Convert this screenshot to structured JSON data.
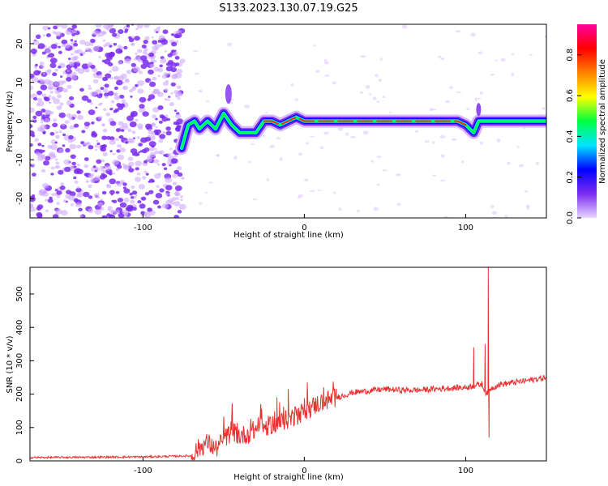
{
  "title": "S133.2023.130.07.19.G25",
  "chart_data": [
    {
      "type": "heatmap",
      "xlabel": "Height of straight line (km)",
      "ylabel": "Frequency (Hz)",
      "xlim": [
        -170,
        150
      ],
      "ylim": [
        -25,
        25
      ],
      "xticks": [
        -100,
        0,
        100
      ],
      "yticks": [
        -20,
        -10,
        0,
        10,
        20
      ],
      "colorbar": {
        "label": "Normalized spectral amplitude",
        "range": [
          0.0,
          0.95
        ],
        "ticks": [
          0.0,
          0.2,
          0.4,
          0.6,
          0.8
        ],
        "colormap": [
          "#e8d5ff",
          "#7b2cf0",
          "#0000ff",
          "#00e5ff",
          "#00ff40",
          "#ffff00",
          "#ff8000",
          "#ff0000",
          "#ff00a0"
        ]
      },
      "ridge": {
        "x": [
          -76,
          -72,
          -68,
          -65,
          -60,
          -55,
          -50,
          -45,
          -40,
          -35,
          -30,
          -25,
          -20,
          -15,
          -10,
          -5,
          0,
          10,
          20,
          40,
          60,
          80,
          95,
          100,
          105,
          108,
          110,
          120,
          130,
          140,
          150
        ],
        "y": [
          -7,
          -1,
          0,
          -2,
          0,
          -2,
          2,
          -1,
          -3,
          -3,
          -3,
          0,
          0,
          -1,
          0,
          1,
          0,
          0,
          0,
          0,
          0,
          0,
          0,
          -1,
          -3,
          0,
          0,
          0,
          0,
          0,
          0
        ]
      },
      "noise_region": [
        -170,
        -75
      ]
    },
    {
      "type": "line",
      "xlabel": "Height of straight line (km)",
      "ylabel": "SNR (10 * v/v)",
      "xlim": [
        -170,
        150
      ],
      "ylim": [
        0,
        580
      ],
      "xticks": [
        -100,
        0,
        100
      ],
      "yticks": [
        0,
        100,
        200,
        300,
        400,
        500
      ],
      "color": "#e8312f",
      "trend": {
        "x": [
          -170,
          -100,
          -70,
          -65,
          -60,
          -55,
          -50,
          -45,
          -40,
          -35,
          -30,
          -25,
          -20,
          -15,
          -10,
          -5,
          0,
          10,
          20,
          30,
          40,
          50,
          60,
          70,
          80,
          90,
          100,
          105,
          110,
          113,
          115,
          120,
          130,
          140,
          150
        ],
        "y": [
          10,
          12,
          15,
          40,
          55,
          35,
          60,
          90,
          75,
          80,
          95,
          100,
          110,
          115,
          125,
          135,
          150,
          175,
          190,
          205,
          210,
          215,
          212,
          212,
          215,
          218,
          220,
          225,
          230,
          200,
          215,
          228,
          235,
          242,
          250
        ]
      },
      "spikes": [
        {
          "x": -45,
          "y": 130
        },
        {
          "x": -27,
          "y": 170
        },
        {
          "x": -17,
          "y": 190
        },
        {
          "x": -10,
          "y": 215
        },
        {
          "x": 105,
          "y": 340
        },
        {
          "x": 112,
          "y": 350
        },
        {
          "x": 114,
          "y": 580
        },
        {
          "x": 114.5,
          "y": 70
        }
      ]
    }
  ]
}
